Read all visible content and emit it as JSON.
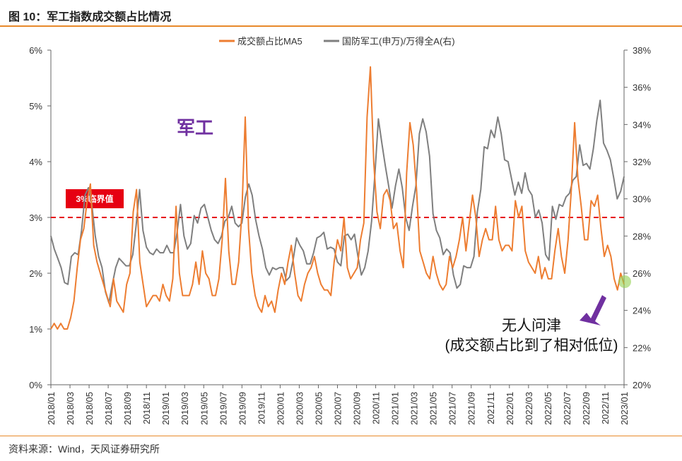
{
  "figure": {
    "title": "图 10：军工指数成交额占比情况",
    "source": "资料来源：Wind，天风证券研究所"
  },
  "annotations": {
    "sector_label": "军工",
    "threshold_label": "3%临界值",
    "note_line1": "无人问津",
    "note_line2": "(成交额占比到了相对低位)"
  },
  "colors": {
    "ma5": "#ED7D31",
    "index_ratio": "#7F7F7F",
    "threshold": "#E60012",
    "sector_label": "#7030A0",
    "arrow": "#7030A0",
    "marker": "#92D050"
  },
  "chart_data": {
    "type": "line",
    "legend_position": "top-center",
    "grid": false,
    "x_ticks": [
      "2018/01",
      "2018/03",
      "2018/05",
      "2018/07",
      "2018/09",
      "2018/11",
      "2019/01",
      "2019/03",
      "2019/05",
      "2019/07",
      "2019/09",
      "2019/11",
      "2020/01",
      "2020/03",
      "2020/05",
      "2020/07",
      "2020/09",
      "2020/11",
      "2021/01",
      "2021/03",
      "2021/05",
      "2021/07",
      "2021/09",
      "2021/11",
      "2022/01",
      "2022/03",
      "2022/05",
      "2022/07",
      "2022/09",
      "2022/11",
      "2023/01"
    ],
    "y_left": {
      "ticks": [
        "0%",
        "1%",
        "2%",
        "3%",
        "4%",
        "5%",
        "6%"
      ],
      "range": [
        0,
        6
      ]
    },
    "y_right": {
      "ticks": [
        "20%",
        "22%",
        "24%",
        "26%",
        "28%",
        "30%",
        "32%",
        "34%",
        "36%",
        "38%"
      ],
      "range": [
        20,
        38
      ]
    },
    "threshold": {
      "value": 3,
      "axis": "left"
    },
    "series": [
      {
        "name": "成交额占比MA5",
        "axis": "left",
        "values": [
          1.0,
          1.1,
          1.0,
          1.1,
          1.0,
          1.0,
          1.2,
          1.5,
          2.1,
          2.6,
          2.8,
          3.3,
          3.6,
          2.5,
          2.2,
          2.0,
          1.8,
          1.6,
          1.4,
          1.9,
          1.5,
          1.4,
          1.3,
          1.8,
          2.0,
          3.1,
          3.5,
          2.2,
          1.8,
          1.4,
          1.5,
          1.6,
          1.6,
          1.5,
          1.8,
          1.6,
          1.5,
          1.9,
          3.2,
          2.0,
          1.6,
          1.6,
          1.6,
          1.8,
          2.2,
          1.8,
          2.4,
          2.0,
          1.9,
          1.6,
          1.6,
          1.9,
          2.6,
          3.7,
          2.4,
          1.8,
          1.8,
          2.2,
          3.1,
          4.8,
          2.8,
          2.0,
          1.6,
          1.4,
          1.3,
          1.6,
          1.4,
          1.5,
          1.3,
          1.7,
          2.0,
          1.8,
          2.2,
          2.5,
          2.0,
          1.6,
          1.5,
          1.8,
          2.0,
          2.1,
          2.3,
          2.0,
          1.8,
          1.7,
          1.7,
          1.6,
          2.2,
          2.6,
          2.4,
          3.0,
          2.1,
          1.9,
          2.0,
          2.1,
          2.6,
          2.9,
          4.8,
          5.7,
          4.0,
          3.1,
          2.8,
          3.4,
          3.5,
          3.3,
          2.8,
          2.9,
          2.4,
          2.1,
          3.8,
          4.7,
          4.3,
          3.5,
          2.4,
          2.2,
          2.0,
          1.9,
          2.3,
          2.0,
          1.8,
          1.7,
          1.8,
          2.3,
          2.1,
          2.3,
          2.6,
          3.0,
          2.4,
          2.9,
          3.4,
          3.0,
          2.3,
          2.6,
          2.8,
          2.6,
          2.6,
          3.2,
          2.6,
          2.4,
          2.5,
          2.5,
          2.4,
          3.3,
          3.0,
          3.2,
          2.4,
          2.2,
          2.1,
          2.0,
          2.3,
          1.9,
          2.1,
          1.9,
          1.9,
          2.4,
          2.8,
          2.3,
          2.0,
          2.6,
          3.5,
          4.7,
          3.7,
          3.2,
          2.6,
          2.6,
          3.3,
          3.2,
          3.4,
          2.8,
          2.3,
          2.5,
          2.3,
          1.9,
          1.7,
          2.0,
          1.8
        ]
      },
      {
        "name": "国防军工(申万)/万得全A(右)",
        "axis": "right",
        "values": [
          28.0,
          27.3,
          26.8,
          26.3,
          25.5,
          25.4,
          26.9,
          27.1,
          27.0,
          28.3,
          30.2,
          30.6,
          29.7,
          28.0,
          26.9,
          26.3,
          25.0,
          24.4,
          25.4,
          26.3,
          26.8,
          26.6,
          26.4,
          26.4,
          27.0,
          28.6,
          30.5,
          28.3,
          27.4,
          27.1,
          27.0,
          27.3,
          27.1,
          27.1,
          27.5,
          27.1,
          27.1,
          28.2,
          29.7,
          28.0,
          27.3,
          27.6,
          29.1,
          28.7,
          29.5,
          29.7,
          29.0,
          28.3,
          27.8,
          27.6,
          28.0,
          28.8,
          29.0,
          29.6,
          28.7,
          28.5,
          28.7,
          30.1,
          30.8,
          30.2,
          28.9,
          28.0,
          27.3,
          26.3,
          25.9,
          26.3,
          26.2,
          26.3,
          26.3,
          25.6,
          25.8,
          26.7,
          27.9,
          27.5,
          27.2,
          26.5,
          26.5,
          27.1,
          27.9,
          28.0,
          28.2,
          27.3,
          27.4,
          27.3,
          26.6,
          26.4,
          28.0,
          28.1,
          27.8,
          28.1,
          26.9,
          25.9,
          26.3,
          27.2,
          28.8,
          31.4,
          34.3,
          33.0,
          31.8,
          30.7,
          29.5,
          30.7,
          31.6,
          30.6,
          29.0,
          28.3,
          29.6,
          30.7,
          33.5,
          34.3,
          33.6,
          32.3,
          29.2,
          28.3,
          27.9,
          27.0,
          27.3,
          27.1,
          25.9,
          25.2,
          25.4,
          26.4,
          26.3,
          26.3,
          26.9,
          29.3,
          30.5,
          32.8,
          32.7,
          33.7,
          33.3,
          34.4,
          33.5,
          32.1,
          32.0,
          31.1,
          30.2,
          30.9,
          30.3,
          31.4,
          30.5,
          30.2,
          29.0,
          29.4,
          28.7,
          27.0,
          26.7,
          29.6,
          28.9,
          29.7,
          29.6,
          30.1,
          30.3,
          31.0,
          31.2,
          32.9,
          31.8,
          31.9,
          31.6,
          32.7,
          34.2,
          35.3,
          33.0,
          32.6,
          32.1,
          31.1,
          30.0,
          30.4,
          31.2
        ]
      }
    ]
  }
}
